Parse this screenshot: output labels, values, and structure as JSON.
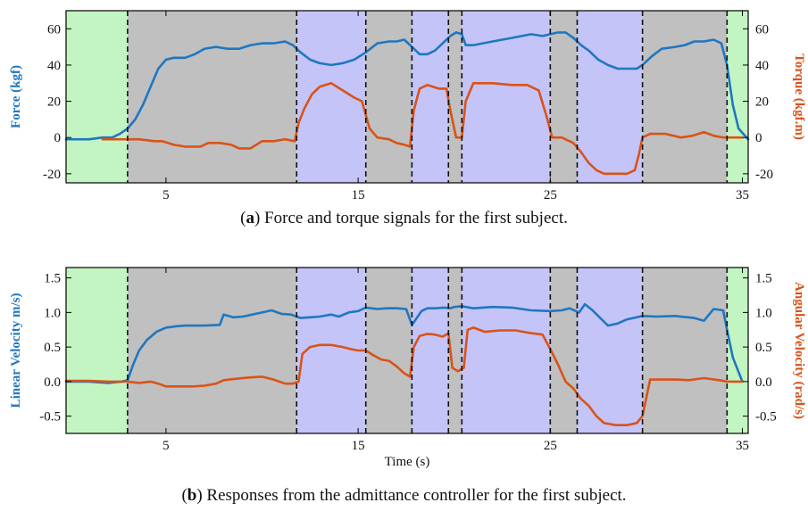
{
  "chart_data": [
    {
      "type": "line",
      "caption_label": "a",
      "caption_text": "Force and torque signals for the first subject.",
      "xlabel": "",
      "ylabel_left": "Force (kgf)",
      "ylabel_right": "Torque (kgf.m)",
      "xlim": [
        -0.2,
        35.3
      ],
      "ylim": [
        -25,
        70
      ],
      "xticks": [
        5,
        15,
        25,
        35
      ],
      "yticks_left": [
        -20,
        0,
        20,
        40,
        60
      ],
      "yticks_right": [
        -20,
        0,
        20,
        40,
        60
      ],
      "phase_boundaries": [
        3.0,
        11.8,
        15.4,
        17.8,
        19.7,
        20.4,
        25.0,
        26.4,
        29.8,
        34.2
      ],
      "phases": [
        {
          "x0": -0.2,
          "x1": 3.0,
          "color": "#c2f5c2"
        },
        {
          "x0": 3.0,
          "x1": 11.8,
          "color": "#c0c0c0"
        },
        {
          "x0": 11.8,
          "x1": 15.4,
          "color": "#c4c4f8"
        },
        {
          "x0": 15.4,
          "x1": 17.8,
          "color": "#c0c0c0"
        },
        {
          "x0": 17.8,
          "x1": 19.7,
          "color": "#c4c4f8"
        },
        {
          "x0": 19.7,
          "x1": 20.4,
          "color": "#c0c0c0"
        },
        {
          "x0": 20.4,
          "x1": 25.0,
          "color": "#c4c4f8"
        },
        {
          "x0": 25.0,
          "x1": 26.4,
          "color": "#c0c0c0"
        },
        {
          "x0": 26.4,
          "x1": 29.8,
          "color": "#c4c4f8"
        },
        {
          "x0": 29.8,
          "x1": 34.2,
          "color": "#c0c0c0"
        },
        {
          "x0": 34.2,
          "x1": 35.3,
          "color": "#c2f5c2"
        }
      ],
      "series": [
        {
          "axis": "left",
          "color": "#1f77c0",
          "x": [
            -0.2,
            1.0,
            1.7,
            2.2,
            2.6,
            3.0,
            3.4,
            3.8,
            4.2,
            4.6,
            5.0,
            5.4,
            6.0,
            6.5,
            7.0,
            7.6,
            8.2,
            8.8,
            9.4,
            10.0,
            10.6,
            11.2,
            11.6,
            12.0,
            12.5,
            13.0,
            13.6,
            14.2,
            14.8,
            15.4,
            16.0,
            16.6,
            17.0,
            17.4,
            17.8,
            18.2,
            18.6,
            19.0,
            19.4,
            19.8,
            20.1,
            20.4,
            20.6,
            21.0,
            22.0,
            23.0,
            24.0,
            24.6,
            25.0,
            25.4,
            25.8,
            26.2,
            26.6,
            27.0,
            27.5,
            28.0,
            28.5,
            29.0,
            29.5,
            29.8,
            30.3,
            30.8,
            31.5,
            32.0,
            32.5,
            33.0,
            33.5,
            33.9,
            34.2,
            34.5,
            34.8,
            35.3
          ],
          "values": [
            -1,
            -1,
            0,
            0,
            2,
            5,
            10,
            18,
            28,
            38,
            43,
            44,
            44,
            46,
            49,
            50,
            49,
            49,
            51,
            52,
            52,
            53,
            51,
            47,
            43,
            41,
            40,
            41,
            43,
            47,
            52,
            53,
            53,
            54,
            50,
            46,
            46,
            48,
            52,
            56,
            58,
            57,
            51,
            51,
            53,
            55,
            57,
            56,
            57,
            58,
            58,
            55,
            51,
            48,
            43,
            40,
            38,
            38,
            38,
            40,
            45,
            49,
            50,
            51,
            53,
            53,
            54,
            52,
            40,
            18,
            5,
            -1
          ]
        },
        {
          "axis": "right",
          "color": "#d95319",
          "x": [
            1.7,
            2.2,
            3.0,
            3.6,
            4.4,
            4.8,
            5.4,
            6.0,
            6.4,
            6.8,
            7.2,
            7.8,
            8.4,
            8.8,
            9.4,
            10.0,
            10.6,
            11.2,
            11.7,
            11.9,
            12.2,
            12.6,
            13.0,
            13.6,
            14.2,
            14.8,
            15.2,
            15.6,
            16.0,
            16.6,
            17.0,
            17.4,
            17.7,
            17.9,
            18.2,
            18.6,
            19.2,
            19.6,
            19.8,
            20.1,
            20.4,
            20.6,
            21.0,
            22.0,
            23.0,
            23.8,
            24.4,
            24.8,
            25.1,
            25.6,
            26.2,
            26.6,
            27.0,
            27.4,
            27.8,
            28.4,
            29.0,
            29.4,
            29.6,
            29.8,
            30.2,
            31.0,
            31.8,
            32.4,
            33.0,
            33.5,
            34.0,
            35.0
          ],
          "values": [
            -1,
            -1,
            -1,
            -1,
            -2,
            -2,
            -4,
            -5,
            -5,
            -5,
            -3,
            -3,
            -4,
            -6,
            -6,
            -2,
            -2,
            -1,
            -2,
            8,
            16,
            24,
            28,
            30,
            26,
            22,
            20,
            5,
            0,
            -1,
            -3,
            -4,
            -5,
            15,
            27,
            29,
            27,
            27,
            15,
            0,
            0,
            20,
            30,
            30,
            29,
            29,
            26,
            12,
            0,
            0,
            -3,
            -8,
            -14,
            -18,
            -20,
            -20,
            -20,
            -18,
            -10,
            0,
            2,
            2,
            0,
            1,
            3,
            1,
            0,
            0
          ]
        }
      ]
    },
    {
      "type": "line",
      "caption_label": "b",
      "caption_text": "Responses from the admittance controller for the first subject.",
      "xlabel": "Time (s)",
      "ylabel_left": "Linear Velocity m/s)",
      "ylabel_right": "Angular Velocity (rad/s)",
      "xlim": [
        -0.2,
        35.3
      ],
      "ylim": [
        -0.75,
        1.65
      ],
      "xticks": [
        5,
        15,
        25,
        35
      ],
      "yticks_left": [
        -0.5,
        0.0,
        0.5,
        1.0,
        1.5
      ],
      "yticks_right": [
        -0.5,
        0.0,
        0.5,
        1.0,
        1.5
      ],
      "phase_boundaries": [
        3.0,
        11.8,
        15.4,
        17.8,
        19.7,
        20.4,
        25.0,
        26.4,
        29.8,
        34.2
      ],
      "phases": [
        {
          "x0": -0.2,
          "x1": 3.0,
          "color": "#c2f5c2"
        },
        {
          "x0": 3.0,
          "x1": 11.8,
          "color": "#c0c0c0"
        },
        {
          "x0": 11.8,
          "x1": 15.4,
          "color": "#c4c4f8"
        },
        {
          "x0": 15.4,
          "x1": 17.8,
          "color": "#c0c0c0"
        },
        {
          "x0": 17.8,
          "x1": 19.7,
          "color": "#c4c4f8"
        },
        {
          "x0": 19.7,
          "x1": 20.4,
          "color": "#c0c0c0"
        },
        {
          "x0": 20.4,
          "x1": 25.0,
          "color": "#c4c4f8"
        },
        {
          "x0": 25.0,
          "x1": 26.4,
          "color": "#c0c0c0"
        },
        {
          "x0": 26.4,
          "x1": 29.8,
          "color": "#c4c4f8"
        },
        {
          "x0": 29.8,
          "x1": 34.2,
          "color": "#c0c0c0"
        },
        {
          "x0": 34.2,
          "x1": 35.3,
          "color": "#c2f5c2"
        }
      ],
      "series": [
        {
          "axis": "left",
          "color": "#1f77c0",
          "x": [
            -0.2,
            1.0,
            2.0,
            2.7,
            3.0,
            3.3,
            3.6,
            4.0,
            4.5,
            5.0,
            5.5,
            6.0,
            7.0,
            7.8,
            8.0,
            8.5,
            9.0,
            9.5,
            10.0,
            10.5,
            11.0,
            11.5,
            12.0,
            12.5,
            13.0,
            13.6,
            14.0,
            14.5,
            15.0,
            15.4,
            16.0,
            16.5,
            17.0,
            17.5,
            17.8,
            18.0,
            18.3,
            18.6,
            19.0,
            19.5,
            19.8,
            20.0,
            20.4,
            21.0,
            22.0,
            23.0,
            24.0,
            25.0,
            25.6,
            26.0,
            26.5,
            26.8,
            27.2,
            27.6,
            28.0,
            28.5,
            29.0,
            29.8,
            30.5,
            31.5,
            32.5,
            33.0,
            33.5,
            34.0,
            34.2,
            34.5,
            35.0
          ],
          "values": [
            0.0,
            0.0,
            -0.02,
            0.0,
            0.02,
            0.25,
            0.45,
            0.6,
            0.72,
            0.78,
            0.8,
            0.81,
            0.81,
            0.82,
            0.97,
            0.93,
            0.94,
            0.97,
            1.0,
            1.03,
            0.98,
            0.97,
            0.92,
            0.93,
            0.94,
            0.97,
            0.94,
            1.0,
            1.02,
            1.07,
            1.05,
            1.06,
            1.06,
            1.05,
            0.82,
            0.9,
            1.02,
            1.06,
            1.06,
            1.07,
            1.06,
            1.08,
            1.09,
            1.06,
            1.08,
            1.07,
            1.03,
            1.02,
            1.03,
            1.06,
            1.0,
            1.12,
            1.03,
            0.92,
            0.81,
            0.84,
            0.9,
            0.95,
            0.94,
            0.95,
            0.92,
            0.88,
            1.05,
            1.03,
            0.75,
            0.35,
            0.0
          ]
        },
        {
          "axis": "right",
          "color": "#d95319",
          "x": [
            -0.2,
            1.0,
            2.0,
            3.0,
            3.6,
            4.2,
            4.6,
            5.0,
            5.6,
            6.4,
            7.0,
            7.6,
            8.0,
            8.6,
            9.4,
            10.0,
            10.6,
            11.2,
            11.6,
            11.9,
            12.1,
            12.5,
            13.0,
            13.6,
            14.2,
            14.6,
            15.0,
            15.4,
            15.8,
            16.2,
            16.6,
            17.0,
            17.4,
            17.7,
            17.9,
            18.2,
            18.6,
            19.0,
            19.4,
            19.7,
            19.9,
            20.2,
            20.5,
            20.7,
            21.0,
            21.6,
            22.4,
            23.2,
            24.0,
            24.6,
            25.0,
            25.4,
            25.8,
            26.2,
            26.6,
            27.0,
            27.4,
            27.8,
            28.4,
            29.0,
            29.5,
            29.8,
            30.2,
            30.8,
            31.6,
            32.2,
            33.0,
            33.8,
            34.2,
            35.0
          ],
          "values": [
            0.01,
            0.01,
            0.0,
            0.0,
            -0.02,
            0.0,
            -0.03,
            -0.07,
            -0.07,
            -0.07,
            -0.06,
            -0.03,
            0.02,
            0.04,
            0.06,
            0.07,
            0.03,
            -0.03,
            -0.03,
            0.0,
            0.4,
            0.5,
            0.53,
            0.53,
            0.5,
            0.47,
            0.45,
            0.45,
            0.38,
            0.32,
            0.3,
            0.22,
            0.12,
            0.07,
            0.5,
            0.66,
            0.69,
            0.68,
            0.65,
            0.7,
            0.2,
            0.15,
            0.2,
            0.75,
            0.78,
            0.72,
            0.74,
            0.74,
            0.7,
            0.68,
            0.47,
            0.25,
            0.0,
            -0.1,
            -0.25,
            -0.35,
            -0.5,
            -0.6,
            -0.63,
            -0.63,
            -0.6,
            -0.5,
            0.03,
            0.03,
            0.03,
            0.02,
            0.05,
            0.02,
            0.0,
            0.0
          ]
        }
      ]
    }
  ]
}
